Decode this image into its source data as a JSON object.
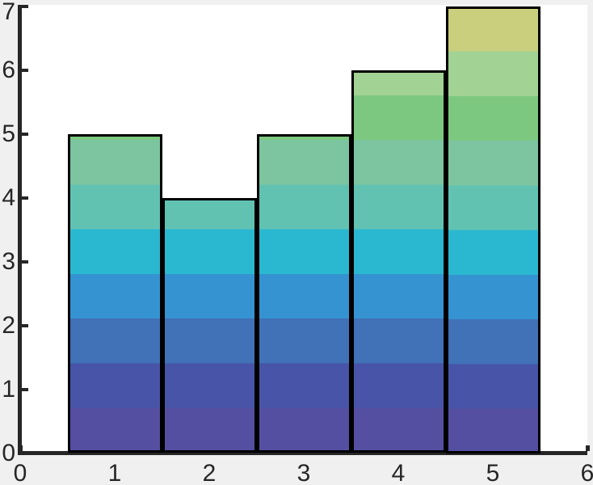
{
  "chart_data": {
    "type": "bar",
    "x": [
      1,
      2,
      3,
      4,
      5
    ],
    "values": [
      5,
      4,
      5,
      6,
      7
    ],
    "bar_width": 1,
    "title": "",
    "xlabel": "",
    "ylabel": "",
    "xlim": [
      0,
      6
    ],
    "ylim": [
      0,
      7
    ],
    "x_ticks": [
      0,
      1,
      2,
      3,
      4,
      5,
      6
    ],
    "x_tick_labels": [
      "0",
      "1",
      "2",
      "3",
      "4",
      "5",
      "6"
    ],
    "y_ticks": [
      0,
      1,
      2,
      3,
      4,
      5,
      6,
      7
    ],
    "y_tick_labels": [
      "0",
      "1",
      "2",
      "3",
      "4",
      "5",
      "6",
      "7"
    ],
    "grid": false,
    "legend": null,
    "gradient_bands": {
      "band_height": 0.7,
      "mapped_to": "y-axis 0 to 7, bottom to top",
      "colors": [
        "#544fa1",
        "#4754a7",
        "#4171b6",
        "#3593d1",
        "#2ab8d0",
        "#62c2b2",
        "#7cc5a0",
        "#7cc880",
        "#a3d295",
        "#c9cf7c"
      ]
    },
    "colors": {
      "bar_edge": "#000000",
      "axis": "#262626",
      "tick_text": "#262626",
      "plot_background": "#ffffff",
      "figure_background": "#f0f0f0"
    }
  }
}
